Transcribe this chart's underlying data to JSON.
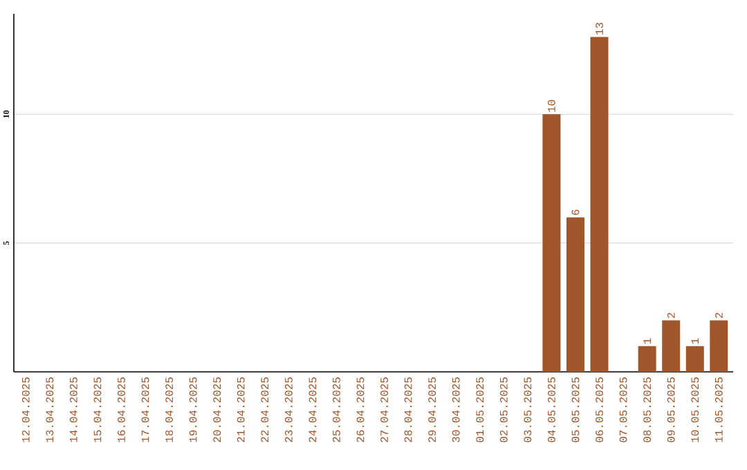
{
  "chart_data": {
    "type": "bar",
    "categories": [
      "12.04.2025",
      "13.04.2025",
      "14.04.2025",
      "15.04.2025",
      "16.04.2025",
      "17.04.2025",
      "18.04.2025",
      "19.04.2025",
      "20.04.2025",
      "21.04.2025",
      "22.04.2025",
      "23.04.2025",
      "24.04.2025",
      "25.04.2025",
      "26.04.2025",
      "27.04.2025",
      "28.04.2025",
      "29.04.2025",
      "30.04.2025",
      "01.05.2025",
      "02.05.2025",
      "03.05.2025",
      "04.05.2025",
      "05.05.2025",
      "06.05.2025",
      "07.05.2025",
      "08.05.2025",
      "09.05.2025",
      "10.05.2025",
      "11.05.2025"
    ],
    "values": [
      0,
      0,
      0,
      0,
      0,
      0,
      0,
      0,
      0,
      0,
      0,
      0,
      0,
      0,
      0,
      0,
      0,
      0,
      0,
      0,
      0,
      0,
      10,
      6,
      13,
      0,
      1,
      2,
      1,
      2
    ],
    "value_labels": [
      null,
      null,
      null,
      null,
      null,
      null,
      null,
      null,
      null,
      null,
      null,
      null,
      null,
      null,
      null,
      null,
      null,
      null,
      null,
      null,
      null,
      null,
      "10",
      "6",
      "13",
      null,
      "1",
      "2",
      "1",
      "2"
    ],
    "color": "#a0552a",
    "ylim": [
      0,
      13.9
    ],
    "yticks": [
      5,
      10
    ],
    "grid": "y"
  }
}
